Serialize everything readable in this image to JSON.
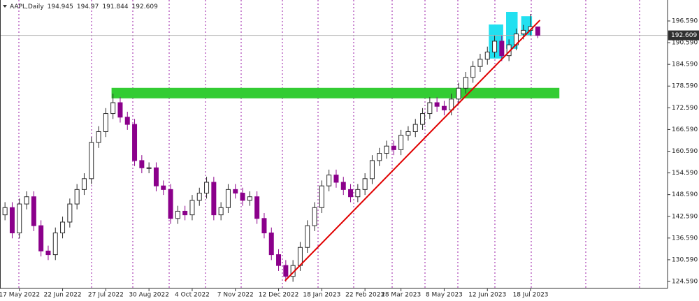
{
  "chart_data": {
    "type": "candlestick",
    "title": "AAPL,Daily",
    "categories": [
      null,
      null,
      "17 May 2022",
      null,
      null,
      null,
      null,
      null,
      "22 Jun 2022",
      null,
      null,
      null,
      null,
      null,
      "27 Jul 2022",
      null,
      null,
      null,
      null,
      null,
      "30 Aug 2022",
      null,
      null,
      null,
      null,
      null,
      "4 Oct 2022",
      null,
      null,
      null,
      null,
      null,
      "7 Nov 2022",
      null,
      null,
      null,
      null,
      null,
      "12 Dec 2022",
      null,
      null,
      null,
      null,
      null,
      "18 Jan 2023",
      null,
      null,
      null,
      null,
      null,
      "22 Feb 2023",
      null,
      null,
      null,
      null,
      "28 Mar 2023",
      null,
      null,
      null,
      null,
      null,
      "8 May 2023",
      null,
      null,
      null,
      null,
      null,
      "12 Jun 2023",
      null,
      null,
      null,
      null,
      null,
      "18 Jul 2023",
      null
    ],
    "open": [
      143,
      145,
      138,
      146,
      148,
      140,
      133,
      132,
      138,
      141,
      146,
      150,
      153,
      163,
      166,
      171,
      174,
      170,
      168,
      158,
      156,
      156,
      151,
      150,
      142,
      144,
      143,
      147,
      149,
      152,
      143,
      145,
      150,
      149,
      147,
      148,
      142,
      138,
      132,
      129,
      126,
      129,
      134,
      140,
      145,
      151,
      154,
      152,
      150,
      148,
      150,
      153,
      158,
      160,
      162,
      161,
      165,
      166,
      168,
      171,
      174,
      173,
      172,
      175,
      178,
      181,
      184,
      186,
      188,
      191,
      187,
      190,
      193,
      194,
      194.945
    ],
    "high": [
      146.5,
      146.5,
      147.5,
      149.5,
      149.5,
      141.5,
      134.5,
      139.5,
      142.5,
      147.5,
      151.5,
      154.5,
      164.5,
      167.5,
      172.5,
      176.5,
      175.5,
      171.5,
      169.5,
      159.5,
      157.5,
      157.5,
      152.5,
      151.5,
      145.5,
      145.5,
      148.5,
      150.5,
      153.5,
      153.5,
      146.5,
      151.5,
      151.5,
      150.5,
      149.5,
      149.5,
      143.5,
      139.5,
      133.5,
      130.5,
      130.5,
      135.5,
      141.5,
      146.5,
      152.5,
      155.5,
      155.5,
      153.5,
      151.5,
      151.5,
      154.5,
      159.5,
      161.5,
      163.5,
      163.5,
      166.5,
      167.5,
      169.5,
      172.5,
      175.5,
      175.5,
      174.5,
      176.5,
      179.5,
      182.5,
      185.5,
      187.5,
      189.5,
      192.5,
      192.5,
      191.5,
      194.5,
      195.5,
      198.5,
      194.97
    ],
    "low": [
      141.5,
      136.5,
      136.5,
      144.5,
      138.5,
      131.5,
      130.5,
      130.5,
      136.5,
      139.5,
      144.5,
      148.5,
      151.5,
      161.5,
      164.5,
      169.5,
      168.5,
      166.5,
      156.5,
      154.5,
      154.5,
      149.5,
      148.5,
      140.5,
      140.5,
      141.5,
      141.5,
      145.5,
      147.5,
      141.5,
      141.5,
      143.5,
      147.5,
      145.5,
      145.5,
      140.5,
      136.5,
      130.5,
      127.5,
      124.5,
      124.5,
      127.5,
      132.5,
      138.5,
      143.5,
      149.5,
      150.5,
      148.5,
      146.5,
      146.5,
      148.5,
      151.5,
      156.5,
      158.5,
      159.5,
      159.5,
      163.5,
      164.5,
      166.5,
      169.5,
      171.5,
      170.5,
      170.5,
      173.5,
      176.5,
      179.5,
      182.5,
      184.5,
      186.5,
      185.5,
      185.5,
      188.5,
      191.5,
      192.5,
      191.844
    ],
    "close": [
      145,
      138,
      146,
      148,
      140,
      133,
      132,
      138,
      141,
      146,
      150,
      153,
      163,
      166,
      171,
      174,
      170,
      168,
      158,
      156,
      156,
      151,
      150,
      142,
      144,
      143,
      147,
      149,
      152,
      143,
      145,
      150,
      149,
      147,
      148,
      142,
      138,
      132,
      129,
      126,
      129,
      134,
      140,
      145,
      151,
      154,
      152,
      150,
      148,
      150,
      153,
      158,
      160,
      162,
      161,
      165,
      166,
      168,
      171,
      174,
      173,
      172,
      175,
      178,
      181,
      184,
      186,
      188,
      191,
      187,
      190,
      193,
      194,
      195,
      192.609
    ],
    "up_color": "#2b2b2b",
    "down_color": "#8b008b",
    "ylim": [
      122.66,
      202.38
    ],
    "yticks": [
      {
        "value": 124.59,
        "label": "124.590"
      },
      {
        "value": 130.59,
        "label": "130.590"
      },
      {
        "value": 136.59,
        "label": "136.590"
      },
      {
        "value": 142.59,
        "label": "142.590"
      },
      {
        "value": 148.59,
        "label": "148.590"
      },
      {
        "value": 154.59,
        "label": "154.590"
      },
      {
        "value": 160.59,
        "label": "160.590"
      },
      {
        "value": 166.59,
        "label": "166.590"
      },
      {
        "value": 172.59,
        "label": "172.590"
      },
      {
        "value": 178.59,
        "label": "178.590"
      },
      {
        "value": 184.59,
        "label": "184.590"
      },
      {
        "value": 190.59,
        "label": "190.590"
      },
      {
        "value": 196.59,
        "label": "196.590"
      }
    ],
    "zones": [
      {
        "color": "#33cc33",
        "x": [
          14.8,
          77
        ],
        "y": [
          175.2,
          178.1
        ]
      },
      {
        "color": "#22e0f0",
        "x": [
          67.2,
          69.2
        ],
        "y": [
          186.2,
          195.6
        ]
      },
      {
        "color": "#22e0f0",
        "x": [
          69.6,
          71.2
        ],
        "y": [
          188.9,
          199.1
        ]
      },
      {
        "color": "#22e0f0",
        "x": [
          71.7,
          73.2
        ],
        "y": [
          192.5,
          197.9
        ]
      }
    ],
    "trendline": {
      "color": "#e00000",
      "x": [
        38.9,
        74.3
      ],
      "y": [
        124.8,
        196.8
      ]
    }
  }
}
